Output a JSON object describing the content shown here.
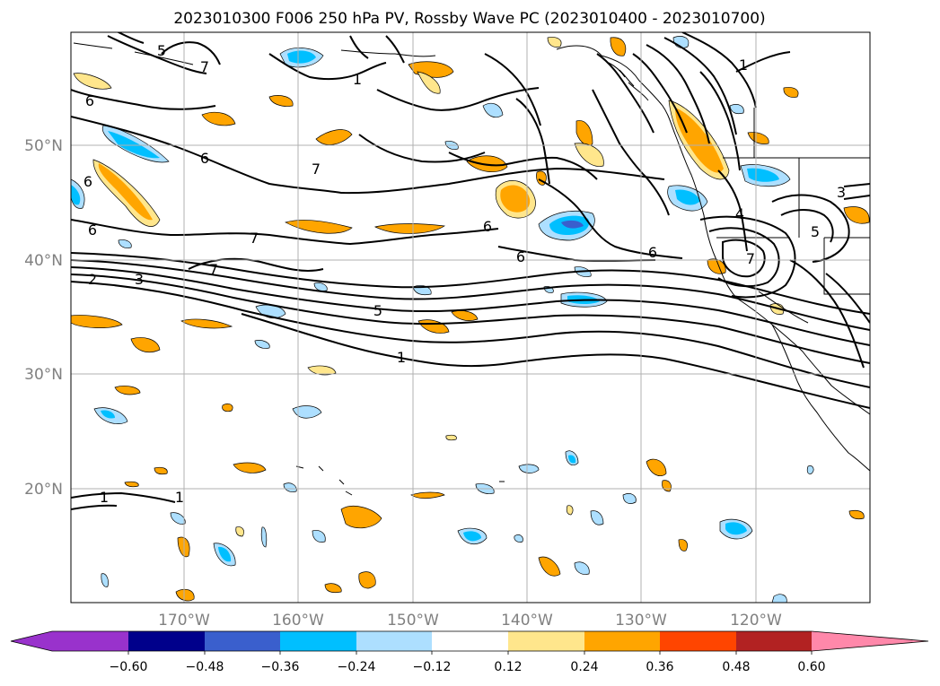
{
  "title": "2023010300 F006 250 hPa PV, Rossby Wave PC (2023010400 - 2023010700)",
  "latitude_labels": [
    "50°N",
    "40°N",
    "30°N",
    "20°N"
  ],
  "longitude_labels": [
    "170°W",
    "160°W",
    "150°W",
    "140°W",
    "130°W",
    "120°W"
  ],
  "colorbar": {
    "ticks": [
      "−0.60",
      "−0.48",
      "−0.36",
      "−0.24",
      "−0.12",
      "0.12",
      "0.24",
      "0.36",
      "0.48",
      "0.60"
    ],
    "colors": [
      "#9932CC",
      "#00008B",
      "#3A5FCD",
      "#00BFFF",
      "#ADDFFF",
      "#FFFFFF",
      "#FFE68C",
      "#FFA500",
      "#FF4500",
      "#B22222",
      "#FF88AA"
    ]
  },
  "contour_labels": {
    "pv5_nw": "5",
    "pv7_top": "7",
    "pv1_top": "1",
    "pv6_a": "6",
    "pv6_b": "6",
    "pv6_c": "6",
    "pv7_b": "7",
    "pv6_d": "6",
    "pv7_c": "7",
    "pv7_d": "7",
    "pv2": "2",
    "pv3_w": "3",
    "pv5_mid": "5",
    "pv1_mid": "1",
    "pv6_e": "6",
    "pv6_f": "6",
    "pv6_g": "6",
    "pv1_ne": "1",
    "pv3_e": "3",
    "pv5_e": "5",
    "pv4": "4",
    "pv7_e": "7",
    "pv1_sw": "1",
    "pv1_sw2": "1"
  }
}
